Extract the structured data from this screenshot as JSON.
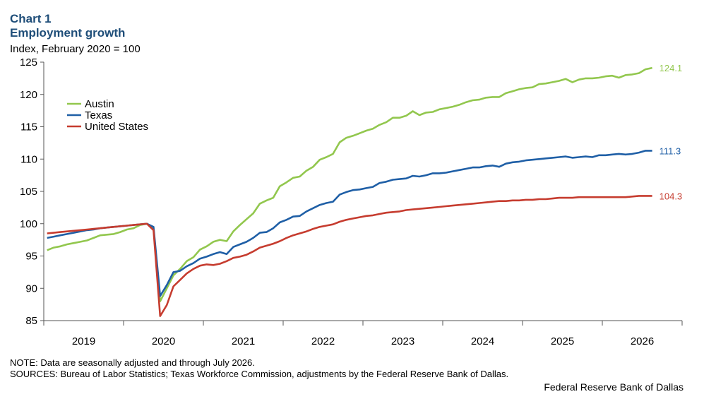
{
  "header": {
    "chart_label": "Chart 1",
    "title": "Employment growth",
    "y_unit": "Index, February 2020 = 100"
  },
  "footer": {
    "note": "NOTE: Data are seasonally adjusted and through July 2026.",
    "sources": "SOURCES: Bureau of Labor Statistics; Texas Workforce Commission, adjustments by the Federal Reserve Bank of Dallas.",
    "credit": "Federal Reserve Bank of Dallas"
  },
  "chart_data": {
    "type": "line",
    "title": "Employment growth",
    "ylabel": "Index, February 2020 = 100",
    "ylim": [
      85,
      125
    ],
    "yticks": [
      85,
      90,
      95,
      100,
      105,
      110,
      115,
      120,
      125
    ],
    "xticks": [
      "2019",
      "2020",
      "2021",
      "2022",
      "2023",
      "2024",
      "2025",
      "2026"
    ],
    "x_start": "2019-01",
    "x_end": "2026-07",
    "legend_position": "top-left",
    "grid": false,
    "series": [
      {
        "name": "Austin",
        "color": "#92c74e",
        "end_label": "124.1",
        "values": [
          95.9,
          96.3,
          96.5,
          96.8,
          97.0,
          97.2,
          97.4,
          97.8,
          98.2,
          98.3,
          98.4,
          98.7,
          99.1,
          99.3,
          99.8,
          100.0,
          99.2,
          88.0,
          90.0,
          92.0,
          93.0,
          94.2,
          94.8,
          96.0,
          96.5,
          97.2,
          97.5,
          97.3,
          98.8,
          99.8,
          100.7,
          101.6,
          103.1,
          103.6,
          104.0,
          105.8,
          106.4,
          107.1,
          107.3,
          108.2,
          108.8,
          109.9,
          110.3,
          110.8,
          112.6,
          113.3,
          113.6,
          114.0,
          114.4,
          114.7,
          115.3,
          115.7,
          116.4,
          116.4,
          116.7,
          117.4,
          116.8,
          117.2,
          117.3,
          117.7,
          117.9,
          118.1,
          118.4,
          118.8,
          119.1,
          119.2,
          119.5,
          119.6,
          119.6,
          120.2,
          120.5,
          120.8,
          121.0,
          121.1,
          121.6,
          121.7,
          121.9,
          122.1,
          122.4,
          121.9,
          122.3,
          122.5,
          122.5,
          122.6,
          122.8,
          122.9,
          122.6,
          123.0,
          123.1,
          123.3,
          123.9,
          124.1
        ]
      },
      {
        "name": "Texas",
        "color": "#1f5fa6",
        "end_label": "111.3",
        "values": [
          97.8,
          98.0,
          98.2,
          98.4,
          98.6,
          98.8,
          99.0,
          99.1,
          99.3,
          99.4,
          99.5,
          99.6,
          99.7,
          99.8,
          99.9,
          100.0,
          99.5,
          88.8,
          90.5,
          92.5,
          92.7,
          93.4,
          93.9,
          94.6,
          94.9,
          95.3,
          95.6,
          95.3,
          96.4,
          96.8,
          97.2,
          97.8,
          98.6,
          98.7,
          99.3,
          100.2,
          100.6,
          101.1,
          101.2,
          101.9,
          102.4,
          102.9,
          103.2,
          103.4,
          104.5,
          104.9,
          105.2,
          105.3,
          105.5,
          105.7,
          106.3,
          106.5,
          106.8,
          106.9,
          107.0,
          107.4,
          107.3,
          107.5,
          107.8,
          107.8,
          107.9,
          108.1,
          108.3,
          108.5,
          108.7,
          108.7,
          108.9,
          109.0,
          108.8,
          109.3,
          109.5,
          109.6,
          109.8,
          109.9,
          110.0,
          110.1,
          110.2,
          110.3,
          110.4,
          110.2,
          110.3,
          110.4,
          110.3,
          110.6,
          110.6,
          110.7,
          110.8,
          110.7,
          110.8,
          111.0,
          111.3,
          111.3
        ]
      },
      {
        "name": "United States",
        "color": "#c63c2f",
        "end_label": "104.3",
        "values": [
          98.5,
          98.6,
          98.7,
          98.8,
          98.9,
          99.0,
          99.1,
          99.2,
          99.3,
          99.4,
          99.5,
          99.6,
          99.7,
          99.8,
          99.9,
          100.0,
          99.0,
          85.7,
          87.4,
          90.3,
          91.3,
          92.3,
          93.0,
          93.5,
          93.7,
          93.6,
          93.8,
          94.2,
          94.7,
          94.9,
          95.2,
          95.7,
          96.3,
          96.6,
          96.9,
          97.3,
          97.8,
          98.2,
          98.5,
          98.8,
          99.2,
          99.5,
          99.7,
          99.9,
          100.3,
          100.6,
          100.8,
          101.0,
          101.2,
          101.3,
          101.5,
          101.7,
          101.8,
          101.9,
          102.1,
          102.2,
          102.3,
          102.4,
          102.5,
          102.6,
          102.7,
          102.8,
          102.9,
          103.0,
          103.1,
          103.2,
          103.3,
          103.4,
          103.5,
          103.5,
          103.6,
          103.6,
          103.7,
          103.7,
          103.8,
          103.8,
          103.9,
          104.0,
          104.0,
          104.0,
          104.1,
          104.1,
          104.1,
          104.1,
          104.1,
          104.1,
          104.1,
          104.1,
          104.2,
          104.3,
          104.3,
          104.3
        ]
      }
    ]
  }
}
